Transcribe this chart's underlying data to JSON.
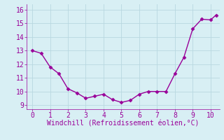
{
  "x": [
    0,
    0.5,
    1,
    1.5,
    2,
    2.5,
    3,
    3.5,
    4,
    4.5,
    5,
    5.5,
    6,
    6.5,
    7,
    7.5,
    8,
    8.5,
    9,
    9.5,
    10,
    10.3
  ],
  "y": [
    13.0,
    12.8,
    11.8,
    11.3,
    10.2,
    9.9,
    9.5,
    9.65,
    9.8,
    9.4,
    9.2,
    9.35,
    9.8,
    10.0,
    10.0,
    10.0,
    11.3,
    12.5,
    14.6,
    15.3,
    15.25,
    15.6
  ],
  "line_color": "#990099",
  "marker": "D",
  "marker_size": 2.5,
  "line_width": 1.0,
  "xlabel": "Windchill (Refroidissement éolien,°C)",
  "xlabel_color": "#990099",
  "xlabel_fontsize": 7,
  "bg_color": "#d8eff4",
  "grid_color": "#b8d8e0",
  "tick_color": "#990099",
  "tick_fontsize": 7,
  "xlim": [
    -0.3,
    10.5
  ],
  "ylim": [
    8.7,
    16.4
  ],
  "xticks": [
    0,
    1,
    2,
    3,
    4,
    5,
    6,
    7,
    8,
    9,
    10
  ],
  "yticks": [
    9,
    10,
    11,
    12,
    13,
    14,
    15,
    16
  ]
}
